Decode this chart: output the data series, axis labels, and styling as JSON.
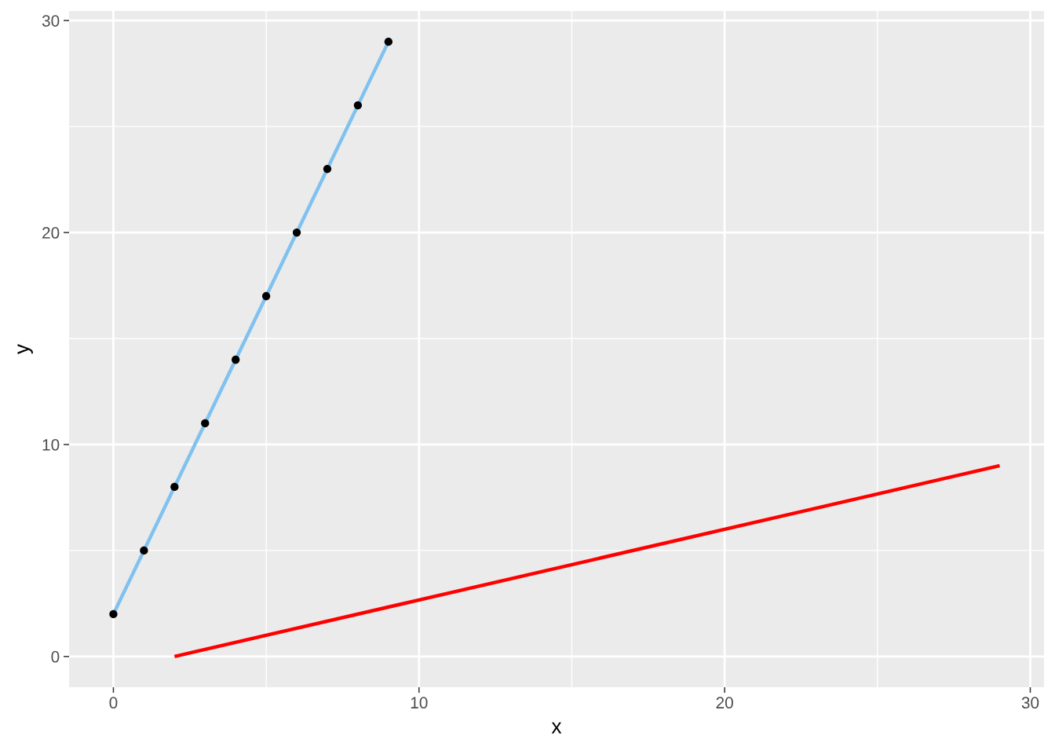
{
  "chart_data": {
    "type": "scatter",
    "xlabel": "x",
    "ylabel": "y",
    "xlim": [
      -1.45,
      30.45
    ],
    "ylim": [
      -1.45,
      30.45
    ],
    "xticks": [
      0,
      {
        "value": 5,
        "label": null
      },
      10,
      {
        "value": 15,
        "label": null
      },
      20,
      {
        "value": 25,
        "label": null
      },
      30
    ],
    "yticks": [
      0,
      {
        "value": 5,
        "label": null
      },
      10,
      {
        "value": 15,
        "label": null
      },
      20,
      {
        "value": 25,
        "label": null
      },
      30
    ],
    "grid": true,
    "series": [
      {
        "type": "line",
        "color": "#7fc1ef",
        "x": [
          0,
          9
        ],
        "values": [
          2,
          29
        ],
        "marker": "none",
        "line_style": "solid"
      },
      {
        "color": "#000000",
        "x": [
          0,
          1,
          2,
          3,
          4,
          5,
          6,
          7,
          8,
          9
        ],
        "values": [
          2,
          5,
          8,
          11,
          14,
          17,
          20,
          23,
          26,
          29
        ],
        "marker": "circle"
      },
      {
        "type": "line",
        "color": "#ff0000",
        "x": [
          2,
          29
        ],
        "values": [
          0,
          9
        ],
        "marker": "none",
        "line_style": "solid"
      }
    ]
  }
}
